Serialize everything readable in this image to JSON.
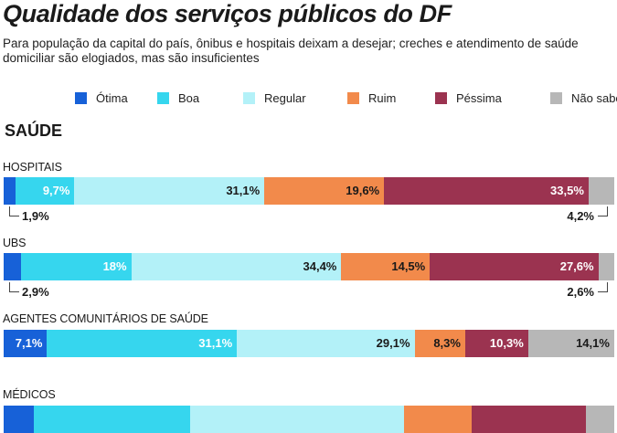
{
  "chart_data": {
    "type": "bar",
    "orientation": "horizontal-stacked-100",
    "title": "Qualidade dos serviços públicos do DF",
    "subtitle": "Para população da capital do país, ônibus e hospitais deixam a desejar; creches e atendimento de saúde domiciliar são elogiados, mas são insuficientes",
    "section": "SAÚDE",
    "legend_position": "top",
    "series": [
      {
        "name": "Ótima",
        "color": "#1761d8"
      },
      {
        "name": "Boa",
        "color": "#36d6ee"
      },
      {
        "name": "Regular",
        "color": "#b3f1f8"
      },
      {
        "name": "Ruim",
        "color": "#f28a4b"
      },
      {
        "name": "Péssima",
        "color": "#9b3350"
      },
      {
        "name": "Não sabem",
        "color": "#b7b7b7"
      }
    ],
    "rows": [
      {
        "category": "HOSPITAIS",
        "values": [
          1.9,
          9.7,
          31.1,
          19.6,
          33.5,
          4.2
        ],
        "labels": [
          "",
          "9,7%",
          "31,1%",
          "19,6%",
          "33,5%",
          ""
        ],
        "callout_left": "1,9%",
        "callout_right": "4,2%"
      },
      {
        "category": "UBS",
        "values": [
          2.9,
          18,
          34.4,
          14.5,
          27.6,
          2.6
        ],
        "labels": [
          "",
          "18%",
          "34,4%",
          "14,5%",
          "27,6%",
          ""
        ],
        "callout_left": "2,9%",
        "callout_right": "2,6%"
      },
      {
        "category": "AGENTES COMUNITÁRIOS DE SAÚDE",
        "values": [
          7.1,
          31.1,
          29.1,
          8.3,
          10.3,
          14.1
        ],
        "labels": [
          "7,1%",
          "31,1%",
          "29,1%",
          "8,3%",
          "10,3%",
          "14,1%"
        ],
        "callout_left": "",
        "callout_right": ""
      },
      {
        "category": "MÉDICOS",
        "values": [
          5,
          25.6,
          35,
          11,
          18.7,
          4.7
        ],
        "labels": [
          "",
          "",
          "",
          "",
          "",
          ""
        ],
        "callout_left": "",
        "callout_right": ""
      }
    ]
  }
}
